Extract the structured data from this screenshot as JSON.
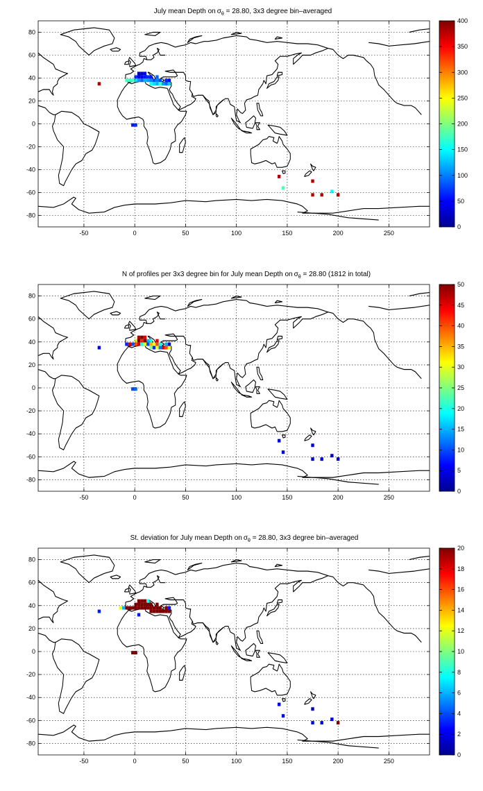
{
  "chart_data": [
    {
      "type": "heatmap",
      "title": "July mean Depth on",
      "title_sigma": "σ",
      "title_sub": "θ",
      "title_rest": " = 28.80, 3x3 degree bin–averaged",
      "xlim": [
        -95,
        290
      ],
      "ylim": [
        -90,
        90
      ],
      "xticks": [
        -50,
        0,
        50,
        100,
        150,
        200,
        250
      ],
      "yticks": [
        -80,
        -60,
        -40,
        -20,
        0,
        20,
        40,
        60,
        80
      ],
      "grid": true,
      "colorbar": {
        "min": 0,
        "max": 400,
        "ticks": [
          0,
          50,
          100,
          150,
          200,
          250,
          300,
          350,
          400
        ],
        "colormap": "jet"
      },
      "cells": [
        [
          -8,
          38,
          180
        ],
        [
          -5,
          38,
          170
        ],
        [
          -2,
          38,
          180
        ],
        [
          1,
          41,
          70
        ],
        [
          1,
          38,
          140
        ],
        [
          4,
          44,
          20
        ],
        [
          4,
          41,
          40
        ],
        [
          4,
          38,
          110
        ],
        [
          7,
          44,
          30
        ],
        [
          7,
          41,
          50
        ],
        [
          7,
          38,
          90
        ],
        [
          10,
          44,
          40
        ],
        [
          10,
          41,
          60
        ],
        [
          10,
          38,
          120
        ],
        [
          13,
          41,
          70
        ],
        [
          13,
          38,
          110
        ],
        [
          16,
          41,
          60
        ],
        [
          16,
          38,
          100
        ],
        [
          16,
          35,
          160
        ],
        [
          19,
          38,
          80
        ],
        [
          19,
          35,
          140
        ],
        [
          22,
          41,
          90
        ],
        [
          22,
          38,
          100
        ],
        [
          22,
          35,
          120
        ],
        [
          25,
          38,
          80
        ],
        [
          25,
          35,
          170
        ],
        [
          28,
          35,
          110
        ],
        [
          31,
          38,
          60
        ],
        [
          31,
          35,
          90
        ],
        [
          34,
          38,
          50
        ],
        [
          34,
          35,
          130
        ],
        [
          -35,
          35,
          380
        ],
        [
          -2,
          -1,
          60
        ],
        [
          1,
          -1,
          70
        ],
        [
          142,
          -46,
          380
        ],
        [
          146,
          -56,
          180
        ],
        [
          175,
          -50,
          380
        ],
        [
          175,
          -62,
          380
        ],
        [
          184,
          -62,
          380
        ],
        [
          194,
          -59,
          150
        ],
        [
          200,
          -62,
          380
        ]
      ]
    },
    {
      "type": "heatmap",
      "title": "N of profiles per 3x3 degree bin for July mean Depth on",
      "title_sigma": "σ",
      "title_sub": "θ",
      "title_rest": " = 28.80 (1812 in total)",
      "xlim": [
        -95,
        290
      ],
      "ylim": [
        -90,
        90
      ],
      "xticks": [
        -50,
        0,
        50,
        100,
        150,
        200,
        250
      ],
      "yticks": [
        -80,
        -60,
        -40,
        -20,
        0,
        20,
        40,
        60,
        80
      ],
      "grid": true,
      "colorbar": {
        "min": 0,
        "max": 50,
        "ticks": [
          0,
          5,
          10,
          15,
          20,
          25,
          30,
          35,
          40,
          45,
          50
        ],
        "colormap": "jet"
      },
      "cells": [
        [
          -8,
          38,
          8
        ],
        [
          -5,
          38,
          45
        ],
        [
          -2,
          38,
          10
        ],
        [
          1,
          41,
          30
        ],
        [
          1,
          38,
          40
        ],
        [
          4,
          44,
          48
        ],
        [
          4,
          41,
          50
        ],
        [
          4,
          38,
          45
        ],
        [
          7,
          44,
          50
        ],
        [
          7,
          41,
          42
        ],
        [
          7,
          38,
          20
        ],
        [
          10,
          44,
          45
        ],
        [
          10,
          41,
          50
        ],
        [
          10,
          38,
          30
        ],
        [
          13,
          41,
          15
        ],
        [
          13,
          38,
          10
        ],
        [
          16,
          41,
          20
        ],
        [
          16,
          38,
          35
        ],
        [
          16,
          35,
          25
        ],
        [
          19,
          38,
          30
        ],
        [
          19,
          35,
          8
        ],
        [
          22,
          41,
          45
        ],
        [
          22,
          38,
          40
        ],
        [
          22,
          35,
          30
        ],
        [
          25,
          38,
          20
        ],
        [
          25,
          35,
          12
        ],
        [
          28,
          35,
          45
        ],
        [
          31,
          38,
          15
        ],
        [
          31,
          35,
          40
        ],
        [
          34,
          38,
          5
        ],
        [
          34,
          35,
          30
        ],
        [
          -35,
          35,
          6
        ],
        [
          -2,
          -1,
          10
        ],
        [
          1,
          -1,
          12
        ],
        [
          142,
          -46,
          4
        ],
        [
          146,
          -56,
          4
        ],
        [
          175,
          -50,
          4
        ],
        [
          175,
          -62,
          4
        ],
        [
          184,
          -62,
          5
        ],
        [
          194,
          -59,
          4
        ],
        [
          200,
          -62,
          4
        ]
      ]
    },
    {
      "type": "heatmap",
      "title": "St. deviation for July mean Depth on",
      "title_sigma": "σ",
      "title_sub": "θ",
      "title_rest": " = 28.80, 3x3 degree bin–averaged",
      "xlim": [
        -95,
        290
      ],
      "ylim": [
        -90,
        90
      ],
      "xticks": [
        -50,
        0,
        50,
        100,
        150,
        200,
        250
      ],
      "yticks": [
        -80,
        -60,
        -40,
        -20,
        0,
        20,
        40,
        60,
        80
      ],
      "grid": true,
      "colorbar": {
        "min": 0,
        "max": 20,
        "ticks": [
          0,
          2,
          4,
          6,
          8,
          10,
          12,
          14,
          16,
          18,
          20
        ],
        "colormap": "jet"
      },
      "cells": [
        [
          -8,
          38,
          20
        ],
        [
          -5,
          38,
          20
        ],
        [
          -2,
          38,
          20
        ],
        [
          1,
          41,
          20
        ],
        [
          1,
          38,
          20
        ],
        [
          4,
          44,
          20
        ],
        [
          4,
          41,
          20
        ],
        [
          4,
          38,
          20
        ],
        [
          7,
          44,
          20
        ],
        [
          7,
          41,
          20
        ],
        [
          7,
          38,
          20
        ],
        [
          10,
          44,
          20
        ],
        [
          10,
          41,
          20
        ],
        [
          10,
          38,
          20
        ],
        [
          13,
          41,
          20
        ],
        [
          13,
          38,
          20
        ],
        [
          16,
          41,
          20
        ],
        [
          16,
          38,
          20
        ],
        [
          16,
          35,
          20
        ],
        [
          19,
          38,
          20
        ],
        [
          19,
          35,
          20
        ],
        [
          22,
          41,
          20
        ],
        [
          22,
          38,
          20
        ],
        [
          22,
          35,
          20
        ],
        [
          25,
          38,
          20
        ],
        [
          25,
          35,
          20
        ],
        [
          28,
          35,
          20
        ],
        [
          31,
          38,
          20
        ],
        [
          31,
          35,
          20
        ],
        [
          34,
          38,
          3
        ],
        [
          34,
          35,
          20
        ],
        [
          4,
          32,
          3
        ],
        [
          13,
          44,
          8
        ],
        [
          -11,
          38,
          6
        ],
        [
          -14,
          38,
          12
        ],
        [
          -35,
          35,
          3
        ],
        [
          -2,
          -1,
          20
        ],
        [
          1,
          -1,
          20
        ],
        [
          142,
          -46,
          2
        ],
        [
          146,
          -56,
          2
        ],
        [
          175,
          -50,
          1
        ],
        [
          175,
          -62,
          2
        ],
        [
          184,
          -62,
          2
        ],
        [
          194,
          -59,
          2
        ],
        [
          200,
          -62,
          20
        ]
      ]
    }
  ]
}
